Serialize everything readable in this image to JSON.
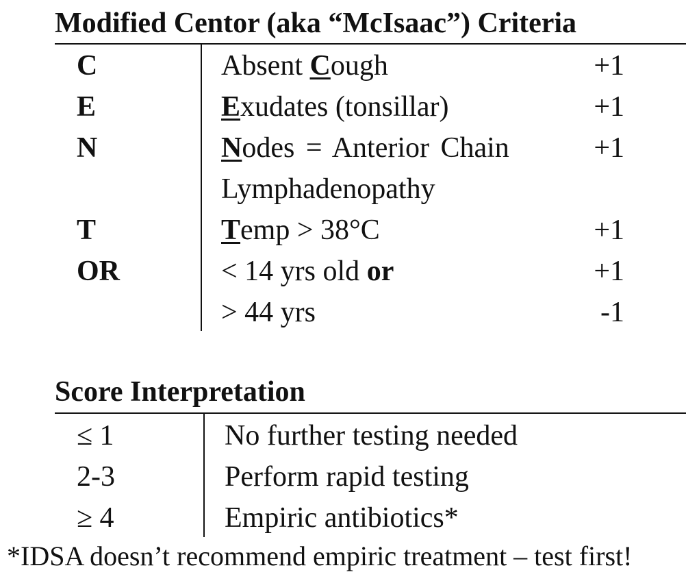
{
  "criteria_section": {
    "title": "Modified Centor (aka “McIsaac”) Criteria",
    "rows": [
      {
        "letter": "C",
        "desc_key": "C",
        "desc_rest": "ough",
        "desc_pre": "Absent ",
        "points": "+1"
      },
      {
        "letter": "E",
        "desc_key": "E",
        "desc_rest": "xudates (tonsillar)",
        "desc_pre": "",
        "points": "+1"
      },
      {
        "letter": "N",
        "desc_key": "N",
        "desc_rest": "odes = Anterior Chain",
        "desc_pre": "",
        "points": "+1"
      },
      {
        "continuation": "Lymphadenopathy"
      },
      {
        "letter": "T",
        "desc_key": "T",
        "desc_rest": "emp > 38°C",
        "desc_pre": "",
        "points": "+1"
      },
      {
        "letter": "OR",
        "desc_main": "< 14 yrs old ",
        "desc_bold": "or",
        "points": "+1"
      },
      {
        "desc_main": "> 44 yrs",
        "points": "-1"
      }
    ]
  },
  "score_section": {
    "title": "Score Interpretation",
    "rows": [
      {
        "score": "≤ 1",
        "interpretation": "No further testing needed"
      },
      {
        "score": "2-3",
        "interpretation": "Perform rapid testing"
      },
      {
        "score": "≥ 4",
        "interpretation": "Empiric antibiotics*"
      }
    ]
  },
  "footnote": "*IDSA doesn’t recommend empiric treatment – test first!"
}
